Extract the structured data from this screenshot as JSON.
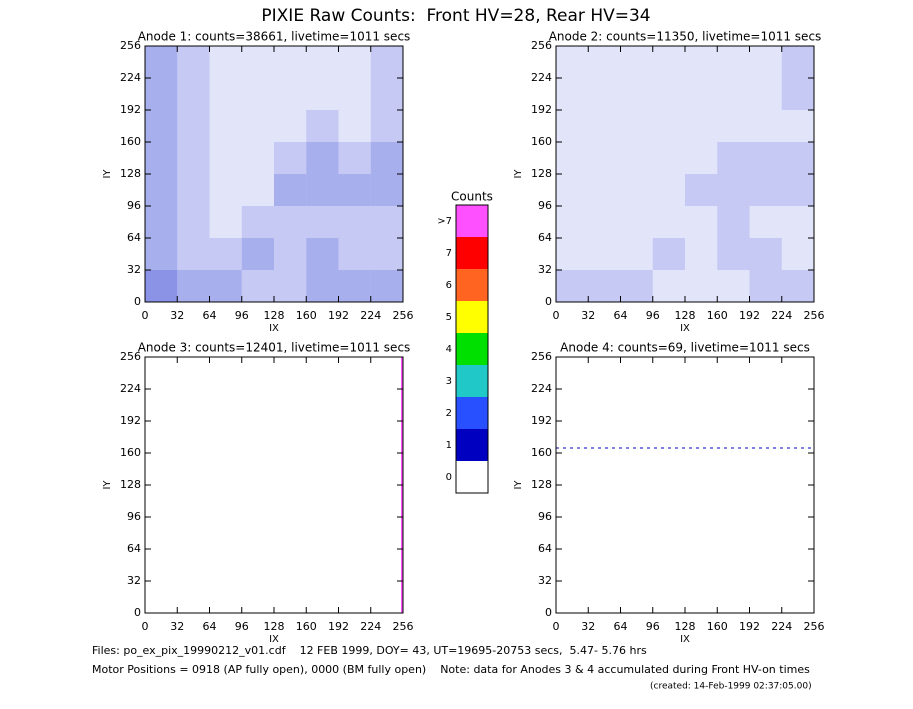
{
  "title": "PIXIE Raw Counts:  Front HV=28, Rear HV=34",
  "axes": {
    "xlabel": "IX",
    "ylabel": "IY",
    "lim": [
      0,
      256
    ],
    "ticks": [
      0,
      32,
      64,
      96,
      128,
      160,
      192,
      224,
      256
    ]
  },
  "panels": [
    {
      "title": "Anode 1: counts=38661, livetime=1011 secs",
      "density": [
        [
          3,
          2,
          1,
          1,
          1,
          1,
          1,
          2
        ],
        [
          3,
          2,
          1,
          1,
          1,
          1,
          1,
          2
        ],
        [
          3,
          2,
          1,
          1,
          1,
          2,
          1,
          2
        ],
        [
          3,
          2,
          1,
          1,
          2,
          3,
          2,
          3
        ],
        [
          3,
          2,
          1,
          1,
          3,
          3,
          3,
          3
        ],
        [
          3,
          2,
          1,
          2,
          2,
          2,
          2,
          2
        ],
        [
          3,
          2,
          2,
          3,
          2,
          3,
          2,
          2
        ],
        [
          4,
          3,
          3,
          2,
          2,
          3,
          3,
          3
        ]
      ]
    },
    {
      "title": "Anode 2: counts=11350, livetime=1011 secs",
      "density": [
        [
          1,
          1,
          1,
          1,
          1,
          1,
          1,
          2
        ],
        [
          1,
          1,
          1,
          1,
          1,
          1,
          1,
          2
        ],
        [
          1,
          1,
          1,
          1,
          1,
          1,
          1,
          1
        ],
        [
          1,
          1,
          1,
          1,
          1,
          2,
          2,
          2
        ],
        [
          1,
          1,
          1,
          1,
          2,
          2,
          2,
          2
        ],
        [
          1,
          1,
          1,
          1,
          1,
          2,
          1,
          1
        ],
        [
          1,
          1,
          1,
          2,
          1,
          2,
          2,
          1
        ],
        [
          2,
          2,
          2,
          1,
          1,
          1,
          2,
          2
        ]
      ]
    },
    {
      "title": "Anode 3: counts=12401, livetime=1011 secs",
      "line_ix": 255,
      "line_color": "#ff50ff"
    },
    {
      "title": "Anode 4: counts=69, livetime=1011 secs",
      "line_iy": 165,
      "line_color": "#0000c0"
    }
  ],
  "colorbar": {
    "title": "Counts",
    "labels": [
      "0",
      "1",
      "2",
      "3",
      "4",
      "5",
      "6",
      "7",
      ">7"
    ],
    "colors": [
      "#ffffff",
      "#0000c0",
      "#2850ff",
      "#20c8c8",
      "#00e000",
      "#ffff00",
      "#ff6420",
      "#ff0000",
      "#ff50ff"
    ]
  },
  "footer": {
    "files": "Files: po_ex_pix_19990212_v01.cdf    12 FEB 1999, DOY= 43, UT=19695-20753 secs,  5.47- 5.76 hrs",
    "motor": "Motor Positions = 0918 (AP fully open), 0000 (BM fully open)    Note: data for Anodes 3 & 4 accumulated during Front HV-on times",
    "created": "(created: 14-Feb-1999 02:37:05.00)"
  }
}
